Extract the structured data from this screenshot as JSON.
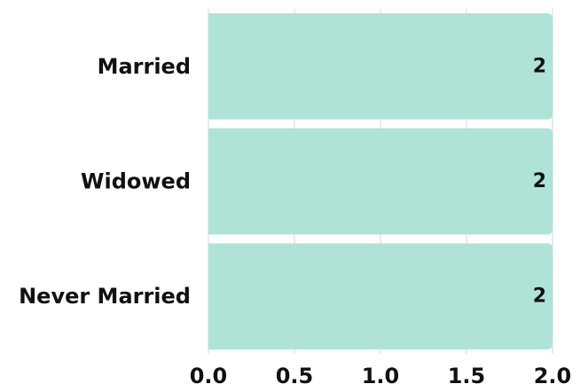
{
  "chart_data": {
    "type": "bar",
    "orientation": "horizontal",
    "categories": [
      "Married",
      "Widowed",
      "Never Married"
    ],
    "values": [
      2,
      2,
      2
    ],
    "value_labels": [
      "2",
      "2",
      "2"
    ],
    "xlim": [
      0,
      2.0
    ],
    "x_ticks": [
      "0.0",
      "0.5",
      "1.0",
      "1.5",
      "2.0"
    ],
    "grid": true,
    "legend": "none",
    "title": "",
    "xlabel": "",
    "ylabel": "",
    "bar_color": "#afe3d8"
  }
}
